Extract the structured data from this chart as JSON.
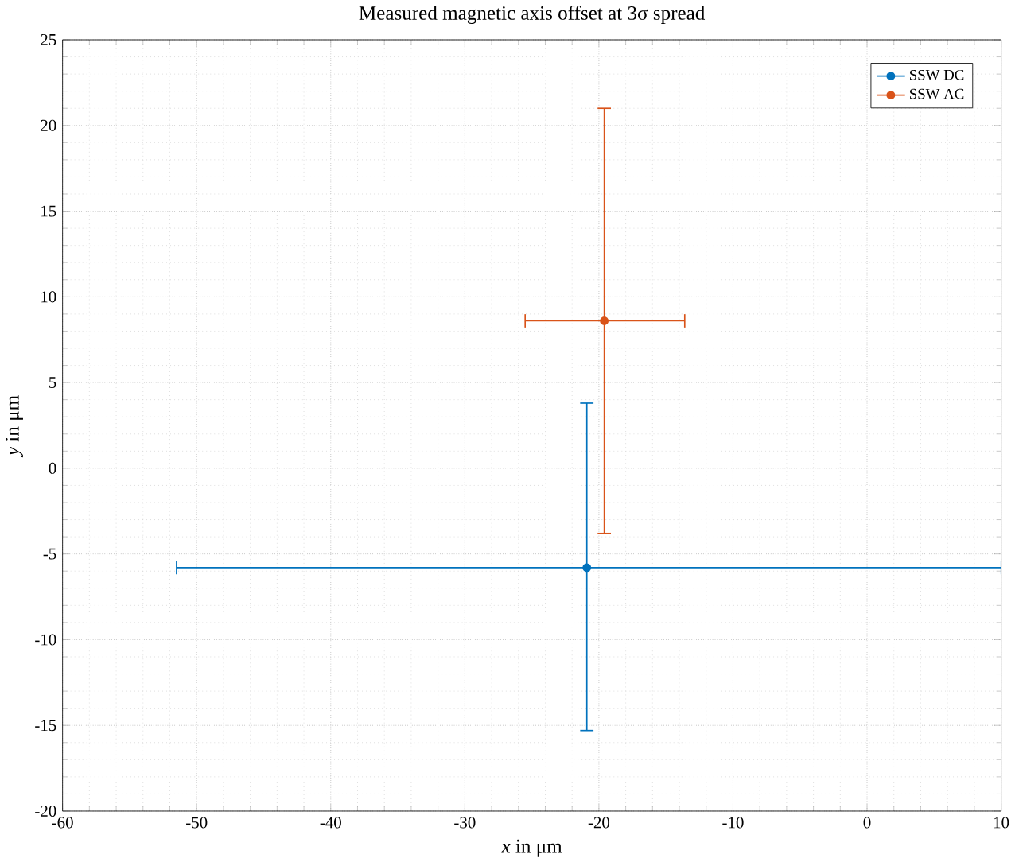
{
  "chart_data": {
    "type": "scatter",
    "title": "Measured magnetic axis offset at 3σ spread",
    "xlabel": "*x* in μm",
    "ylabel": "*y* in μm",
    "xlim": [
      -60,
      10
    ],
    "xticks": [
      -60,
      -50,
      -40,
      -30,
      -20,
      -10,
      0,
      10
    ],
    "ylim": [
      -20,
      25
    ],
    "yticks": [
      -20,
      -15,
      -10,
      -5,
      0,
      5,
      10,
      15,
      20,
      25
    ],
    "grid": true,
    "legend": "top right",
    "marker": "circle",
    "series": [
      {
        "name": "SSW DC",
        "color": "#0072bd",
        "x": [
          -20.9
        ],
        "values": [
          -5.8
        ],
        "errors": [
          [
            -15.3,
            3.8
          ]
        ],
        "xerrors": [
          [
            -51.5,
            10
          ]
        ]
      },
      {
        "name": "SSW AC",
        "color": "#d95319",
        "x": [
          -19.6
        ],
        "values": [
          8.6
        ],
        "errors": [
          [
            -3.8,
            21.0
          ]
        ],
        "xerrors": [
          [
            -25.5,
            -13.6
          ]
        ]
      }
    ]
  }
}
